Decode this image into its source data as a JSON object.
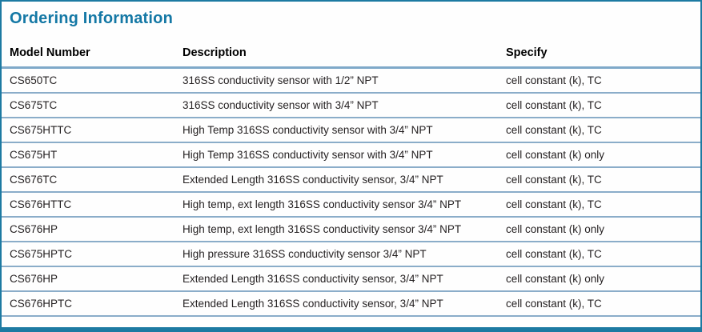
{
  "title": "Ordering Information",
  "colors": {
    "accent_teal": "#1478a5",
    "border_teal": "#1d7aa2",
    "divider_blue": "#8badc9",
    "body_text": "#231f20"
  },
  "table": {
    "columns": [
      {
        "label": "Model Number"
      },
      {
        "label": "Description"
      },
      {
        "label": "Specify"
      }
    ],
    "rows": [
      {
        "model": "CS650TC",
        "description": "316SS conductivity sensor with 1/2” NPT",
        "specify": "cell constant (k), TC"
      },
      {
        "model": "CS675TC",
        "description": "316SS conductivity sensor with 3/4” NPT",
        "specify": "cell constant (k), TC"
      },
      {
        "model": "CS675HTTC",
        "description": "High Temp 316SS conductivity sensor with 3/4” NPT",
        "specify": "cell constant (k), TC"
      },
      {
        "model": "CS675HT",
        "description": "High Temp 316SS conductivity sensor with 3/4” NPT",
        "specify": "cell constant (k) only"
      },
      {
        "model": "CS676TC",
        "description": "Extended Length 316SS conductivity sensor, 3/4” NPT",
        "specify": "cell constant (k), TC"
      },
      {
        "model": "CS676HTTC",
        "description": "High temp, ext length 316SS conductivity sensor 3/4” NPT",
        "specify": "cell constant (k), TC"
      },
      {
        "model": "CS676HP",
        "description": "High temp, ext length 316SS conductivity sensor 3/4” NPT",
        "specify": "cell constant (k) only"
      },
      {
        "model": "CS675HPTC",
        "description": "High pressure 316SS conductivity sensor 3/4” NPT",
        "specify": "cell constant (k), TC"
      },
      {
        "model": "CS676HP",
        "description": "Extended Length 316SS conductivity sensor, 3/4” NPT",
        "specify": "cell constant (k) only"
      },
      {
        "model": "CS676HPTC",
        "description": "Extended Length 316SS conductivity sensor, 3/4” NPT",
        "specify": "cell constant (k), TC"
      }
    ]
  }
}
